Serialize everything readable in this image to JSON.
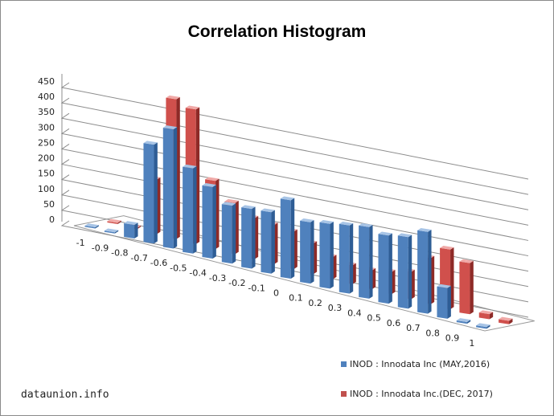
{
  "chart_data": {
    "type": "bar",
    "title": "Correlation Histogram",
    "categories": [
      "-1",
      "-0.9",
      "-0.8",
      "-0.7",
      "-0.6",
      "-0.5",
      "-0.4",
      "-0.3",
      "-0.2",
      "-0.1",
      "0",
      "0.1",
      "0.2",
      "0.3",
      "0.4",
      "0.5",
      "0.6",
      "0.7",
      "0.8",
      "0.9",
      "1"
    ],
    "ylim": [
      0,
      450
    ],
    "yticks": [
      "0",
      "50",
      "100",
      "150",
      "200",
      "250",
      "300",
      "350",
      "400",
      "450"
    ],
    "grid": true,
    "view": "3d-clustered",
    "series": [
      {
        "name": "INOD : Innodata Inc (MAY,2016)",
        "color": "#4f81bd",
        "values": [
          2,
          2,
          40,
          290,
          350,
          250,
          210,
          170,
          175,
          180,
          230,
          180,
          190,
          200,
          210,
          200,
          210,
          240,
          90,
          5,
          5
        ]
      },
      {
        "name": "INOD : Innodata Inc.(DEC, 2017)",
        "color": "#c0504d",
        "values": [
          2,
          0,
          160,
          410,
          395,
          200,
          150,
          120,
          115,
          110,
          90,
          65,
          55,
          55,
          65,
          80,
          135,
          175,
          150,
          15,
          10
        ]
      }
    ],
    "legend_position": "bottom-right"
  },
  "watermark": "dataunion.info"
}
